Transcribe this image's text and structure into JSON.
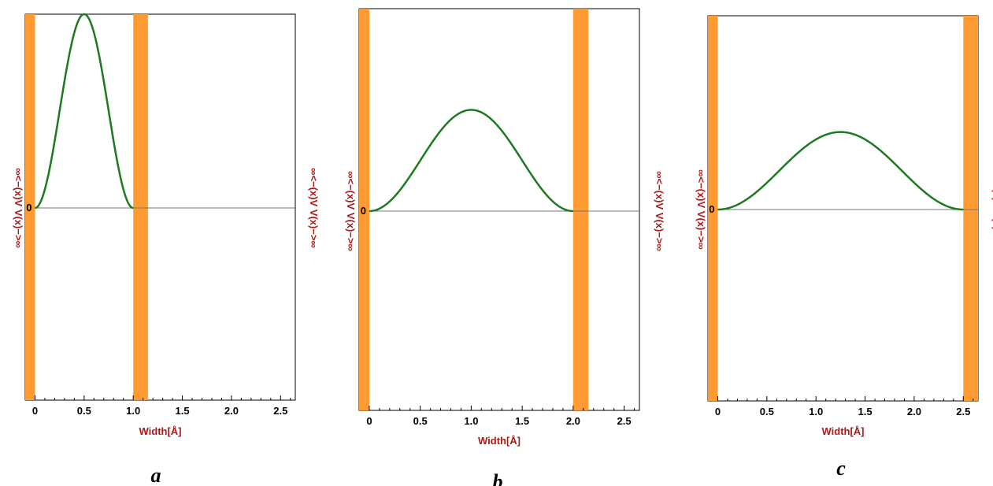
{
  "colors": {
    "wall": "#ff9a33",
    "curve": "#1e7a1e",
    "label": "#b01818",
    "baseline": "#777777",
    "frame": "#000000"
  },
  "chart_data": [
    {
      "type": "line",
      "panel_label": "a",
      "xlabel": "Width[Å]",
      "left_wall_label": "∞<−(x)V   V(x)−>∞",
      "right_wall_label": "∞<−(x)V   V(x)−>∞",
      "zero_label": "0",
      "well_width": 1.0,
      "xlim": [
        -0.1,
        2.65
      ],
      "x_ticks": [
        "0",
        "0.5",
        "1.0",
        "1.5",
        "2.0",
        "2.5"
      ],
      "tick_values": [
        0,
        0.5,
        1.0,
        1.5,
        2.0,
        2.5
      ],
      "wall_thickness": 0.15,
      "peak": 1.0,
      "series": [
        {
          "x_start": 0,
          "x_end": 1.0,
          "shape": "sin^2"
        }
      ]
    },
    {
      "type": "line",
      "panel_label": "b",
      "xlabel": "Width[Å]",
      "left_wall_label": "∞<−(x)V   V(x)−>∞",
      "right_wall_label": "∞<−(x)V   V(x)−>∞",
      "zero_label": "0",
      "well_width": 2.0,
      "xlim": [
        -0.1,
        2.65
      ],
      "x_ticks": [
        "0",
        "0.5",
        "1.0",
        "1.5",
        "2.0",
        "2.5"
      ],
      "tick_values": [
        0,
        0.5,
        1.0,
        1.5,
        2.0,
        2.5
      ],
      "wall_thickness": 0.15,
      "peak": 0.5,
      "series": [
        {
          "x_start": 0,
          "x_end": 2.0,
          "shape": "sin^2"
        }
      ]
    },
    {
      "type": "line",
      "panel_label": "c",
      "xlabel": "Width[Å]",
      "left_wall_label": "∞<−(x)V   V(x)−>∞",
      "right_wall_label": "∞<−(x)V   V(x)−>∞",
      "zero_label": "0",
      "well_width": 2.5,
      "xlim": [
        -0.1,
        2.65
      ],
      "x_ticks": [
        "0",
        "0.5",
        "1.0",
        "1.5",
        "2.0",
        "2.5"
      ],
      "tick_values": [
        0,
        0.5,
        1.0,
        1.5,
        2.0,
        2.5
      ],
      "wall_thickness": 0.15,
      "peak": 0.4,
      "series": [
        {
          "x_start": 0,
          "x_end": 2.5,
          "shape": "sin^2"
        }
      ]
    }
  ]
}
